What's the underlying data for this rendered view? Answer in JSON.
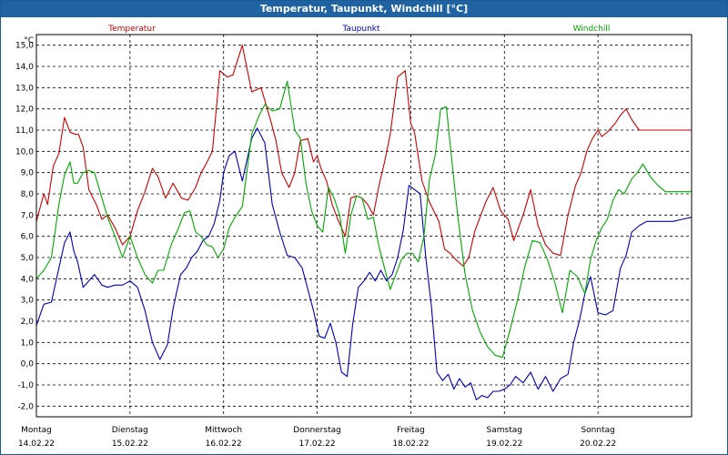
{
  "chart_data": {
    "type": "line",
    "title": "Temperatur, Taupunkt, Windchill [°C]",
    "ylabel": "°C",
    "ylim": [
      -2.5,
      15.5
    ],
    "xlim": [
      0,
      7
    ],
    "y_ticks": [
      "15,0",
      "14,0",
      "13,0",
      "12,0",
      "11,0",
      "10,0",
      "9,0",
      "8,0",
      "7,0",
      "6,0",
      "5,0",
      "4,0",
      "3,0",
      "2,0",
      "1,0",
      "0,0",
      "-1,0",
      "-2,0"
    ],
    "x_labels": [
      {
        "day": "Montag",
        "date": "14.02.22"
      },
      {
        "day": "Dienstag",
        "date": "15.02.22"
      },
      {
        "day": "Mittwoch",
        "date": "16.02.22"
      },
      {
        "day": "Donnerstag",
        "date": "17.02.22"
      },
      {
        "day": "Freitag",
        "date": "18.02.22"
      },
      {
        "day": "Samstag",
        "date": "19.02.22"
      },
      {
        "day": "Sonntag",
        "date": "20.02.22"
      }
    ],
    "grid": true,
    "series": [
      {
        "name": "Temperatur",
        "color": "#cc0000",
        "x": [
          0,
          0.08,
          0.12,
          0.18,
          0.24,
          0.3,
          0.36,
          0.42,
          0.45,
          0.5,
          0.56,
          0.64,
          0.7,
          0.76,
          0.84,
          0.92,
          1.0,
          1.08,
          1.16,
          1.24,
          1.3,
          1.38,
          1.46,
          1.55,
          1.62,
          1.7,
          1.76,
          1.8,
          1.88,
          1.96,
          2.04,
          2.1,
          2.2,
          2.3,
          2.4,
          2.5,
          2.56,
          2.62,
          2.7,
          2.76,
          2.82,
          2.9,
          2.96,
          3.0,
          3.04,
          3.1,
          3.16,
          3.22,
          3.3,
          3.36,
          3.42,
          3.48,
          3.54,
          3.6,
          3.66,
          3.72,
          3.78,
          3.86,
          3.94,
          4.0,
          4.04,
          4.12,
          4.2,
          4.3,
          4.36,
          4.42,
          4.48,
          4.56,
          4.62,
          4.68,
          4.74,
          4.8,
          4.88,
          4.96,
          5.04,
          5.1,
          5.2,
          5.28,
          5.36,
          5.44,
          5.52,
          5.6,
          5.68,
          5.76,
          5.82,
          5.88,
          5.94,
          6.0,
          6.04,
          6.1,
          6.18,
          6.24,
          6.3,
          6.36,
          6.44,
          6.5,
          6.56,
          6.62,
          6.68,
          6.74,
          6.8,
          6.86,
          6.92,
          6.98,
          7.0
        ],
        "values": [
          6.7,
          8.0,
          7.5,
          9.3,
          9.9,
          11.6,
          10.9,
          10.8,
          10.8,
          10.2,
          8.2,
          7.5,
          6.8,
          7.0,
          6.4,
          5.6,
          6.0,
          7.2,
          8.1,
          9.2,
          8.8,
          7.8,
          8.5,
          7.8,
          7.7,
          8.3,
          9.0,
          9.3,
          10.0,
          13.8,
          13.5,
          13.6,
          15.0,
          12.8,
          13.0,
          11.5,
          10.5,
          9.0,
          8.3,
          9.0,
          10.5,
          10.6,
          9.5,
          9.8,
          9.2,
          8.6,
          7.5,
          6.8,
          6.0,
          7.8,
          7.9,
          7.8,
          7.5,
          7.0,
          8.4,
          9.5,
          10.8,
          13.5,
          13.8,
          11.3,
          10.9,
          8.6,
          7.6,
          6.7,
          5.4,
          5.2,
          4.9,
          4.6,
          5.0,
          6.2,
          6.9,
          7.6,
          8.3,
          7.2,
          6.8,
          5.8,
          7.0,
          8.2,
          6.5,
          5.6,
          5.2,
          5.1,
          7.0,
          8.4,
          9.0,
          10.0,
          10.6,
          11.0,
          10.7,
          10.9,
          11.3,
          11.7,
          12.0,
          11.5,
          11.0,
          11.0,
          11.0,
          11.0,
          11.0,
          11.0,
          11.0,
          11.0,
          11.0,
          11.0,
          11.0
        ]
      },
      {
        "name": "Taupunkt",
        "color": "#0000bb",
        "x": [
          0,
          0.08,
          0.16,
          0.24,
          0.3,
          0.36,
          0.4,
          0.44,
          0.5,
          0.56,
          0.62,
          0.7,
          0.76,
          0.84,
          0.92,
          1.0,
          1.08,
          1.16,
          1.24,
          1.32,
          1.4,
          1.46,
          1.54,
          1.6,
          1.66,
          1.72,
          1.78,
          1.84,
          1.9,
          1.96,
          2.0,
          2.06,
          2.12,
          2.2,
          2.3,
          2.36,
          2.44,
          2.52,
          2.6,
          2.68,
          2.76,
          2.84,
          2.9,
          2.96,
          3.02,
          3.08,
          3.14,
          3.2,
          3.26,
          3.32,
          3.38,
          3.44,
          3.5,
          3.56,
          3.62,
          3.68,
          3.74,
          3.8,
          3.86,
          3.92,
          3.98,
          4.04,
          4.1,
          4.16,
          4.22,
          4.28,
          4.34,
          4.4,
          4.46,
          4.52,
          4.58,
          4.64,
          4.7,
          4.76,
          4.82,
          4.88,
          4.94,
          5.0,
          5.06,
          5.12,
          5.2,
          5.28,
          5.36,
          5.44,
          5.52,
          5.6,
          5.68,
          5.74,
          5.8,
          5.86,
          5.92,
          6.0,
          6.08,
          6.16,
          6.24,
          6.3,
          6.36,
          6.44,
          6.52,
          6.6,
          6.7,
          6.8,
          6.9,
          7.0
        ],
        "values": [
          1.8,
          2.8,
          2.9,
          4.5,
          5.7,
          6.2,
          5.3,
          4.8,
          3.6,
          3.9,
          4.2,
          3.7,
          3.6,
          3.7,
          3.7,
          3.9,
          3.6,
          2.5,
          1.0,
          0.2,
          0.9,
          2.6,
          4.2,
          4.5,
          5.0,
          5.3,
          5.8,
          6.0,
          6.6,
          7.7,
          9.0,
          9.8,
          10.0,
          8.6,
          10.6,
          11.1,
          10.4,
          7.5,
          6.2,
          5.1,
          5.0,
          4.5,
          3.5,
          2.5,
          1.3,
          1.2,
          1.9,
          1.0,
          -0.4,
          -0.6,
          1.9,
          3.6,
          3.9,
          4.3,
          3.9,
          4.4,
          3.9,
          4.2,
          5.0,
          6.3,
          8.4,
          8.2,
          8.0,
          5.0,
          2.7,
          -0.4,
          -0.8,
          -0.5,
          -1.2,
          -0.7,
          -1.1,
          -0.9,
          -1.7,
          -1.5,
          -1.6,
          -1.3,
          -1.3,
          -1.2,
          -1.0,
          -0.6,
          -0.9,
          -0.4,
          -1.2,
          -0.6,
          -1.3,
          -0.7,
          -0.5,
          1.0,
          2.0,
          3.3,
          4.1,
          2.4,
          2.3,
          2.5,
          4.5,
          5.1,
          6.2,
          6.5,
          6.7,
          6.7,
          6.7,
          6.7,
          6.8,
          6.9
        ]
      },
      {
        "name": "Windchill",
        "color": "#00aa00",
        "x": [
          0,
          0.08,
          0.16,
          0.24,
          0.3,
          0.36,
          0.4,
          0.44,
          0.5,
          0.56,
          0.62,
          0.7,
          0.76,
          0.84,
          0.92,
          1.0,
          1.08,
          1.16,
          1.24,
          1.3,
          1.36,
          1.44,
          1.52,
          1.58,
          1.64,
          1.7,
          1.76,
          1.82,
          1.88,
          1.94,
          2.0,
          2.06,
          2.12,
          2.2,
          2.3,
          2.38,
          2.44,
          2.52,
          2.6,
          2.68,
          2.76,
          2.82,
          2.88,
          2.94,
          3.0,
          3.06,
          3.12,
          3.18,
          3.24,
          3.3,
          3.36,
          3.42,
          3.48,
          3.54,
          3.6,
          3.66,
          3.72,
          3.78,
          3.84,
          3.9,
          3.96,
          4.02,
          4.08,
          4.14,
          4.2,
          4.26,
          4.32,
          4.38,
          4.44,
          4.5,
          4.58,
          4.66,
          4.74,
          4.82,
          4.9,
          4.98,
          5.06,
          5.14,
          5.22,
          5.3,
          5.38,
          5.46,
          5.54,
          5.62,
          5.7,
          5.78,
          5.86,
          5.92,
          5.98,
          6.04,
          6.1,
          6.16,
          6.22,
          6.28,
          6.36,
          6.42,
          6.48,
          6.56,
          6.64,
          6.72,
          6.8,
          6.88,
          6.96,
          7.0
        ],
        "values": [
          4.0,
          4.4,
          5.0,
          7.5,
          8.9,
          9.5,
          8.5,
          8.5,
          9.0,
          9.1,
          9.0,
          7.8,
          6.9,
          6.0,
          5.0,
          6.0,
          5.0,
          4.2,
          3.8,
          4.4,
          4.4,
          5.6,
          6.4,
          7.1,
          7.2,
          6.2,
          6.0,
          5.6,
          5.5,
          5.0,
          5.4,
          6.4,
          6.9,
          7.4,
          10.8,
          11.7,
          12.2,
          11.9,
          12.0,
          13.3,
          11.0,
          10.6,
          8.5,
          7.2,
          6.5,
          6.2,
          8.3,
          7.8,
          7.0,
          5.2,
          7.0,
          7.9,
          7.8,
          6.8,
          6.9,
          5.5,
          4.5,
          3.5,
          4.2,
          4.9,
          5.2,
          5.2,
          4.8,
          6.0,
          8.7,
          9.8,
          12.0,
          12.1,
          9.5,
          7.0,
          4.2,
          2.5,
          1.5,
          0.8,
          0.4,
          0.3,
          1.6,
          3.0,
          4.6,
          5.8,
          5.7,
          4.9,
          3.8,
          2.4,
          4.4,
          4.1,
          3.3,
          4.9,
          5.8,
          6.4,
          6.8,
          7.7,
          8.2,
          8.0,
          8.7,
          9.0,
          9.4,
          8.8,
          8.4,
          8.1,
          8.1,
          8.1,
          8.1,
          8.1
        ]
      }
    ]
  }
}
